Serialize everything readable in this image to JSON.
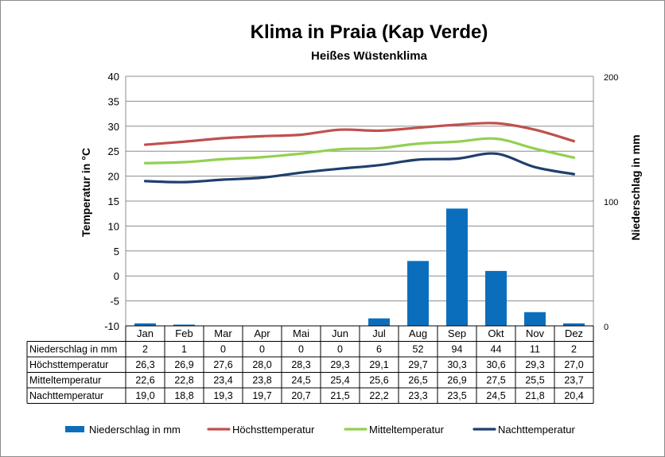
{
  "chart_data": {
    "type": "bar+line",
    "title": "Klima in Praia (Kap Verde)",
    "subtitle": "Heißes Wüstenklima",
    "ylabel_left": "Temperatur in °C",
    "ylabel_right": "Niederschlag in mm",
    "ylim_left": [
      -10,
      40
    ],
    "yticks_left": [
      -10,
      -5,
      0,
      5,
      10,
      15,
      20,
      25,
      30,
      35,
      40
    ],
    "ylim_right": [
      0,
      200
    ],
    "yticks_right": [
      0,
      100,
      200
    ],
    "grid": true,
    "legend_position": "bottom",
    "categories": [
      "Jan",
      "Feb",
      "Mar",
      "Apr",
      "Mai",
      "Jun",
      "Jul",
      "Aug",
      "Sep",
      "Okt",
      "Nov",
      "Dez"
    ],
    "series": [
      {
        "name": "Niederschlag in mm",
        "kind": "bar",
        "axis": "right",
        "color": "#0a6ebd",
        "values": [
          2,
          1,
          0,
          0,
          0,
          0,
          6,
          52,
          94,
          44,
          11,
          2
        ]
      },
      {
        "name": "Höchsttemperatur",
        "kind": "line",
        "axis": "left",
        "color": "#c0504d",
        "values": [
          26.3,
          26.9,
          27.6,
          28.0,
          28.3,
          29.3,
          29.1,
          29.7,
          30.3,
          30.6,
          29.3,
          27.0
        ]
      },
      {
        "name": "Mitteltemperatur",
        "kind": "line",
        "axis": "left",
        "color": "#92d050",
        "values": [
          22.6,
          22.8,
          23.4,
          23.8,
          24.5,
          25.4,
          25.6,
          26.5,
          26.9,
          27.5,
          25.5,
          23.7
        ]
      },
      {
        "name": "Nachttemperatur",
        "kind": "line",
        "axis": "left",
        "color": "#1f3f6e",
        "values": [
          19.0,
          18.8,
          19.3,
          19.7,
          20.7,
          21.5,
          22.2,
          23.3,
          23.5,
          24.5,
          21.8,
          20.4
        ]
      }
    ],
    "table": {
      "rows": [
        {
          "label": "Niederschlag in mm",
          "cells": [
            "2",
            "1",
            "0",
            "0",
            "0",
            "0",
            "6",
            "52",
            "94",
            "44",
            "11",
            "2"
          ]
        },
        {
          "label": "Höchsttemperatur",
          "cells": [
            "26,3",
            "26,9",
            "27,6",
            "28,0",
            "28,3",
            "29,3",
            "29,1",
            "29,7",
            "30,3",
            "30,6",
            "29,3",
            "27,0"
          ]
        },
        {
          "label": "Mitteltemperatur",
          "cells": [
            "22,6",
            "22,8",
            "23,4",
            "23,8",
            "24,5",
            "25,4",
            "25,6",
            "26,5",
            "26,9",
            "27,5",
            "25,5",
            "23,7"
          ]
        },
        {
          "label": "Nachttemperatur",
          "cells": [
            "19,0",
            "18,8",
            "19,3",
            "19,7",
            "20,7",
            "21,5",
            "22,2",
            "23,3",
            "23,5",
            "24,5",
            "21,8",
            "20,4"
          ]
        }
      ]
    }
  }
}
